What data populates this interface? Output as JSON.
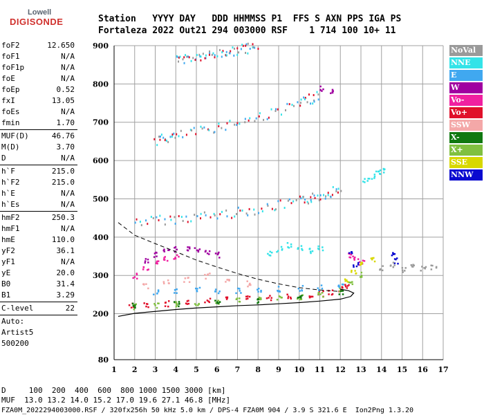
{
  "logo": {
    "top": "Lowell",
    "main": "DIGISONDE"
  },
  "header": {
    "line1": "Station   YYYY DAY   DDD HHMMSS P1  FFS S AXN PPS IGA PS",
    "line2": "Fortaleza 2022 Out21 294 003000 RSF    1 714 100 10+ 11"
  },
  "sidebar": {
    "groups": [
      [
        {
          "k": "foF2",
          "v": "12.650"
        },
        {
          "k": "foF1",
          "v": "N/A"
        },
        {
          "k": "foF1p",
          "v": "N/A"
        },
        {
          "k": "foE",
          "v": "N/A"
        },
        {
          "k": "foEp",
          "v": "0.52"
        },
        {
          "k": "fxI",
          "v": "13.05"
        },
        {
          "k": "foEs",
          "v": "N/A"
        },
        {
          "k": "fmin",
          "v": "1.70"
        }
      ],
      [
        {
          "k": "MUF(D)",
          "v": "46.76"
        },
        {
          "k": "M(D)",
          "v": "3.70"
        },
        {
          "k": "D",
          "v": "N/A"
        }
      ],
      [
        {
          "k": "h`F",
          "v": "215.0"
        },
        {
          "k": "h`F2",
          "v": "215.0"
        },
        {
          "k": "h`E",
          "v": "N/A"
        },
        {
          "k": "h`Es",
          "v": "N/A"
        }
      ],
      [
        {
          "k": "hmF2",
          "v": "250.3"
        },
        {
          "k": "hmF1",
          "v": "N/A"
        },
        {
          "k": "hmE",
          "v": "110.0"
        },
        {
          "k": "yF2",
          "v": "36.1"
        },
        {
          "k": "yF1",
          "v": "N/A"
        },
        {
          "k": "yE",
          "v": "20.0"
        },
        {
          "k": "B0",
          "v": "31.4"
        },
        {
          "k": "B1",
          "v": "3.29"
        }
      ],
      [
        {
          "k": "C-level",
          "v": "22"
        }
      ]
    ],
    "auto": [
      "Auto:",
      "Artist5",
      "500200"
    ]
  },
  "footer": {
    "line1": "D     100  200  400  600  800 1000 1500 3000 [km]",
    "line2": "MUF  13.0 13.2 14.0 15.2 17.0 19.6 27.1 46.8 [MHz]",
    "line3": "FZA0M_2022294003000.RSF / 320fx256h 50 kHz 5.0 km / DPS-4 FZA0M 904 / 3.9 S 321.6 E  Ion2Png 1.3.20"
  },
  "legend": [
    {
      "label": "NoVal",
      "color": "#9a9a9a"
    },
    {
      "label": "NNE",
      "color": "#33e3e8"
    },
    {
      "label": "E",
      "color": "#40a8f0"
    },
    {
      "label": "W",
      "color": "#a000a0"
    },
    {
      "label": "Vo-",
      "color": "#f020a0"
    },
    {
      "label": "Vo+",
      "color": "#e0102a"
    },
    {
      "label": "SSW",
      "color": "#f4a8a8"
    },
    {
      "label": "X-",
      "color": "#107810"
    },
    {
      "label": "X+",
      "color": "#80c040"
    },
    {
      "label": "SSE",
      "color": "#d8d800"
    },
    {
      "label": "NNW",
      "color": "#0a0ad0"
    }
  ],
  "chart_data": {
    "type": "scatter",
    "title": "",
    "xlabel": "",
    "ylabel": "",
    "xlim": [
      1,
      17
    ],
    "ylim": [
      80,
      900
    ],
    "x_ticks": [
      1,
      2,
      3,
      4,
      5,
      6,
      7,
      8,
      9,
      10,
      11,
      12,
      13,
      14,
      15,
      16,
      17
    ],
    "y_ticks": [
      80,
      200,
      300,
      400,
      500,
      600,
      700,
      800,
      900
    ],
    "grid": true,
    "series": [
      {
        "name": "Vo+",
        "color": "#e0102a",
        "x": [
          1.8,
          2.5,
          3.5,
          4.5,
          5.5,
          6.5,
          7.5,
          8.5,
          9.5,
          10.5,
          11.0,
          11.5,
          12.0,
          12.3
        ],
        "y": [
          222,
          225,
          228,
          232,
          236,
          240,
          242,
          244,
          247,
          250,
          254,
          258,
          265,
          275
        ]
      },
      {
        "name": "X+",
        "color": "#80c040",
        "x": [
          2.0,
          3.0,
          4.0,
          5.0,
          6.0,
          7.0,
          8.0,
          9.0,
          10.0,
          11.0,
          12.0,
          12.5,
          13.0
        ],
        "y": [
          220,
          223,
          227,
          231,
          234,
          237,
          240,
          243,
          246,
          250,
          262,
          280,
          305
        ]
      },
      {
        "name": "E",
        "color": "#40a8f0",
        "x": [
          3.0,
          4.0,
          5.0,
          6.0,
          7.0,
          8.0,
          9.0,
          10.0,
          11.0,
          12.0
        ],
        "y": [
          258,
          262,
          263,
          262,
          262,
          264,
          266,
          268,
          270,
          272
        ]
      },
      {
        "name": "NNE",
        "color": "#33e3e8",
        "x": [
          8.5,
          9.0,
          9.5,
          10.0,
          10.5,
          11.0,
          13.2,
          13.5,
          13.8,
          14.0
        ],
        "y": [
          360,
          370,
          380,
          375,
          365,
          372,
          550,
          560,
          570,
          575
        ]
      },
      {
        "name": "W",
        "color": "#a000a0",
        "x": [
          2.5,
          3.0,
          3.5,
          4.0,
          4.5,
          5.0,
          5.5,
          6.0,
          11.0,
          11.5
        ],
        "y": [
          340,
          355,
          365,
          370,
          372,
          368,
          360,
          355,
          790,
          780
        ]
      },
      {
        "name": "Vo-",
        "color": "#f020a0",
        "x": [
          2.0,
          2.5,
          3.0,
          3.5,
          4.0,
          12.5,
          12.7,
          13.0
        ],
        "y": [
          300,
          320,
          340,
          345,
          350,
          355,
          345,
          335
        ]
      },
      {
        "name": "SSW",
        "color": "#f4a8a8",
        "x": [
          2.5,
          3.5,
          4.5,
          5.5,
          6.5,
          7.5
        ],
        "y": [
          275,
          285,
          290,
          300,
          288,
          280
        ]
      },
      {
        "name": "X-",
        "color": "#107810",
        "x": [
          2.0,
          4.0,
          6.0,
          8.0,
          10.0,
          12.0
        ],
        "y": [
          222,
          226,
          230,
          236,
          244,
          260
        ]
      },
      {
        "name": "SSE",
        "color": "#d8d800",
        "x": [
          12.3,
          12.6,
          13.0,
          13.5
        ],
        "y": [
          290,
          310,
          330,
          345
        ]
      },
      {
        "name": "NNW",
        "color": "#0a0ad0",
        "x": [
          12.5,
          12.7,
          14.5,
          14.7
        ],
        "y": [
          360,
          330,
          355,
          340
        ]
      },
      {
        "name": "NoVal",
        "color": "#9a9a9a",
        "x": [
          14.0,
          14.5,
          15.0,
          15.5,
          16.0,
          16.5
        ],
        "y": [
          320,
          330,
          315,
          325,
          318,
          322
        ]
      }
    ],
    "profile_curve": {
      "x": [
        1.2,
        2,
        3,
        4,
        5,
        6,
        7,
        8,
        9,
        10,
        11,
        12,
        12.5,
        12.65,
        12.4,
        12.0
      ],
      "y": [
        193,
        201,
        206,
        211,
        215,
        218,
        221,
        223,
        226,
        229,
        233,
        238,
        245,
        254,
        260,
        264
      ]
    },
    "dashed_curve": {
      "x": [
        1.2,
        2,
        3,
        4,
        5,
        6,
        7,
        8,
        9,
        10,
        11,
        12
      ],
      "y": [
        438,
        405,
        383,
        362,
        340,
        322,
        305,
        290,
        278,
        268,
        262,
        258
      ]
    },
    "multihop_bands": [
      {
        "x": [
          2.0,
          4.0,
          6.0,
          8.0,
          10.0,
          11.0,
          12.0
        ],
        "y": [
          442,
          450,
          460,
          475,
          495,
          510,
          530
        ]
      },
      {
        "x": [
          3.0,
          4.0,
          6.0,
          8.0,
          10.0,
          11.0
        ],
        "y": [
          655,
          665,
          690,
          715,
          750,
          775
        ]
      },
      {
        "x": [
          4.0,
          5.0,
          6.0,
          7.0,
          8.0
        ],
        "y": [
          866,
          872,
          880,
          890,
          900
        ]
      }
    ]
  }
}
